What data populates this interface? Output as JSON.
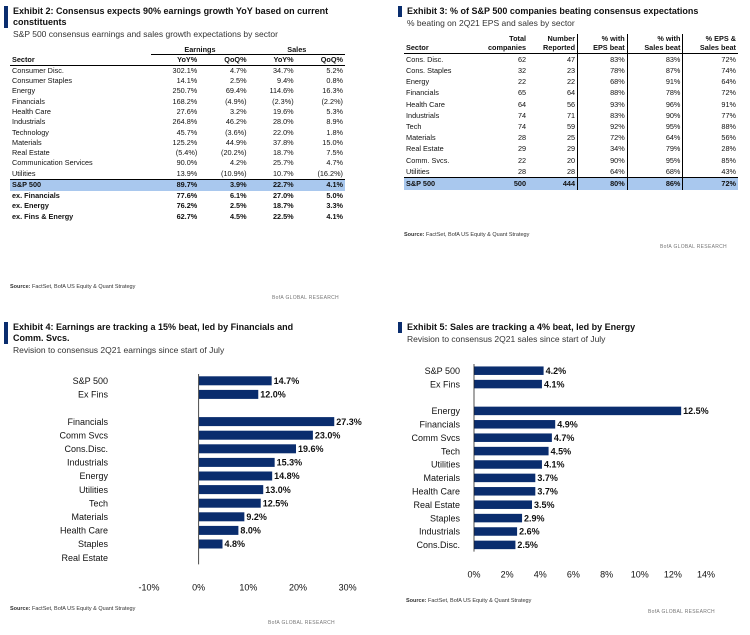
{
  "exhibit2": {
    "title": "Exhibit 2: Consensus expects 90% earnings growth YoY based on current constituents",
    "subtitle": "S&P 500 consensus earnings and sales growth expectations by sector",
    "group_headers": {
      "earnings": "Earnings",
      "sales": "Sales"
    },
    "columns": [
      "Sector",
      "YoY%",
      "QoQ%",
      "YoY%",
      "QoQ%"
    ],
    "rows": [
      [
        "Consumer Disc.",
        "302.1%",
        "4.7%",
        "34.7%",
        "5.2%"
      ],
      [
        "Consumer Staples",
        "14.1%",
        "2.5%",
        "9.4%",
        "0.8%"
      ],
      [
        "Energy",
        "250.7%",
        "69.4%",
        "114.6%",
        "16.3%"
      ],
      [
        "Financials",
        "168.2%",
        "(4.9%)",
        "(2.3%)",
        "(2.2%)"
      ],
      [
        "Health Care",
        "27.6%",
        "3.2%",
        "19.6%",
        "5.3%"
      ],
      [
        "Industrials",
        "264.8%",
        "46.2%",
        "28.0%",
        "8.9%"
      ],
      [
        "Technology",
        "45.7%",
        "(3.6%)",
        "22.0%",
        "1.8%"
      ],
      [
        "Materials",
        "125.2%",
        "44.9%",
        "37.8%",
        "15.0%"
      ],
      [
        "Real Estate",
        "(5.4%)",
        "(20.2%)",
        "18.7%",
        "7.5%"
      ],
      [
        "Communication Services",
        "90.0%",
        "4.2%",
        "25.7%",
        "4.7%"
      ],
      [
        "Utilities",
        "13.9%",
        "(10.9%)",
        "10.7%",
        "(16.2%)"
      ]
    ],
    "summary_rows": [
      [
        "S&P 500",
        "89.7%",
        "3.9%",
        "22.7%",
        "4.1%"
      ],
      [
        "ex. Financials",
        "77.6%",
        "6.1%",
        "27.0%",
        "5.0%"
      ],
      [
        "ex. Energy",
        "76.2%",
        "2.5%",
        "18.7%",
        "3.3%"
      ],
      [
        "ex. Fins & Energy",
        "62.7%",
        "4.5%",
        "22.5%",
        "4.1%"
      ]
    ],
    "source_label": "Source:",
    "source": "FactSet, BofA US Equity & Quant Strategy",
    "brand": "BofA GLOBAL RESEARCH"
  },
  "exhibit3": {
    "title": "Exhibit 3: % of S&P 500 companies beating consensus expectations",
    "subtitle": "% beating on 2Q21 EPS and sales by sector",
    "columns": [
      [
        "Sector",
        ""
      ],
      [
        "Total",
        "companies"
      ],
      [
        "Number",
        "Reported"
      ],
      [
        "% with",
        "EPS beat"
      ],
      [
        "% with",
        "Sales beat"
      ],
      [
        "% EPS &",
        "Sales beat"
      ]
    ],
    "rows": [
      [
        "Cons. Disc.",
        "62",
        "47",
        "83%",
        "83%",
        "72%"
      ],
      [
        "Cons. Staples",
        "32",
        "23",
        "78%",
        "87%",
        "74%"
      ],
      [
        "Energy",
        "22",
        "22",
        "68%",
        "91%",
        "64%"
      ],
      [
        "Financials",
        "65",
        "64",
        "88%",
        "78%",
        "72%"
      ],
      [
        "Health Care",
        "64",
        "56",
        "93%",
        "96%",
        "91%"
      ],
      [
        "Industrials",
        "74",
        "71",
        "83%",
        "90%",
        "77%"
      ],
      [
        "Tech",
        "74",
        "59",
        "92%",
        "95%",
        "88%"
      ],
      [
        "Materials",
        "28",
        "25",
        "72%",
        "64%",
        "56%"
      ],
      [
        "Real Estate",
        "29",
        "29",
        "34%",
        "79%",
        "28%"
      ],
      [
        "Comm. Svcs.",
        "22",
        "20",
        "90%",
        "95%",
        "85%"
      ],
      [
        "Utilities",
        "28",
        "28",
        "64%",
        "68%",
        "43%"
      ]
    ],
    "total_row": [
      "S&P 500",
      "500",
      "444",
      "80%",
      "86%",
      "72%"
    ],
    "source_label": "Source:",
    "source": "FactSet, BofA US Equity & Quant Strategy",
    "brand": "BofA GLOBAL RESEARCH"
  },
  "exhibit4": {
    "title_line1": "Exhibit 4: Earnings are tracking a 15% beat, led by Financials and",
    "title_line2": "Comm. Svcs.",
    "subtitle": "Revision to consensus 2Q21 earnings since start of July",
    "source_label": "Source:",
    "source": "FactSet, BofA US Equity & Quant Strategy",
    "brand": "BofA GLOBAL RESEARCH"
  },
  "exhibit5": {
    "title": "Exhibit 5: Sales are tracking a 4% beat, led by Energy",
    "subtitle": "Revision to consensus 2Q21 sales since start of July",
    "source_label": "Source:",
    "source": "FactSet, BofA US Equity & Quant Strategy",
    "brand": "BofA GLOBAL RESEARCH"
  },
  "chart_data": [
    {
      "type": "bar",
      "orientation": "horizontal",
      "title": "Exhibit 4: Earnings are tracking a 15% beat, led by Financials and Comm. Svcs.",
      "subtitle": "Revision to consensus 2Q21 earnings since start of July",
      "categories": [
        "S&P 500",
        "Ex Fins",
        "",
        "Financials",
        "Comm Svcs",
        "Cons.Disc.",
        "Industrials",
        "Energy",
        "Utilities",
        "Tech",
        "Materials",
        "Health Care",
        "Staples",
        "Real Estate"
      ],
      "values": [
        14.7,
        12.0,
        null,
        27.3,
        23.0,
        19.6,
        15.3,
        14.8,
        13.0,
        12.5,
        9.2,
        8.0,
        4.8,
        null
      ],
      "labels": [
        "14.7%",
        "12.0%",
        "",
        "27.3%",
        "23.0%",
        "19.6%",
        "15.3%",
        "14.8%",
        "13.0%",
        "12.5%",
        "9.2%",
        "8.0%",
        "4.8%",
        ""
      ],
      "xticks": [
        "-10%",
        "0%",
        "10%",
        "20%",
        "30%"
      ],
      "xlim": [
        -10,
        30
      ],
      "color": "#0a2d6e"
    },
    {
      "type": "bar",
      "orientation": "horizontal",
      "title": "Exhibit 5: Sales are tracking a 4% beat, led by Energy",
      "subtitle": "Revision to consensus 2Q21 sales since start of July",
      "categories": [
        "S&P 500",
        "Ex Fins",
        "",
        "Energy",
        "Financials",
        "Comm Svcs",
        "Tech",
        "Utilities",
        "Materials",
        "Health Care",
        "Real Estate",
        "Staples",
        "Industrials",
        "Cons.Disc."
      ],
      "values": [
        4.2,
        4.1,
        null,
        12.5,
        4.9,
        4.7,
        4.5,
        4.1,
        3.7,
        3.7,
        3.5,
        2.9,
        2.6,
        2.5
      ],
      "labels": [
        "4.2%",
        "4.1%",
        "",
        "12.5%",
        "4.9%",
        "4.7%",
        "4.5%",
        "4.1%",
        "3.7%",
        "3.7%",
        "3.5%",
        "2.9%",
        "2.6%",
        "2.5%"
      ],
      "xticks": [
        "0%",
        "2%",
        "4%",
        "6%",
        "8%",
        "10%",
        "12%",
        "14%"
      ],
      "xlim": [
        0,
        14
      ],
      "color": "#0a2d6e"
    }
  ]
}
